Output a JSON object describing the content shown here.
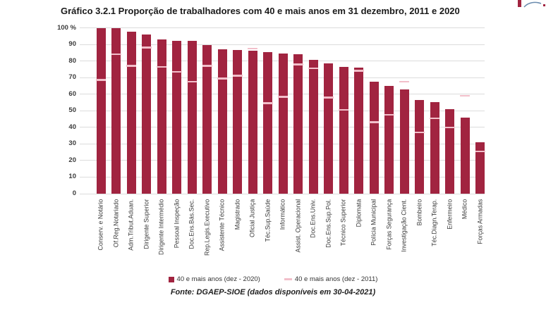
{
  "title": "Gráfico 3.2.1 Proporção de trabalhadores com 40 e mais anos em 31 dezembro, 2011 e 2020",
  "colors": {
    "bar_2020": "#A12440",
    "tick_2011": "#F2BFCA",
    "gridline": "#dcdcdc",
    "logo_red": "#A12440",
    "logo_blue": "#6a8bae"
  },
  "chart_data": {
    "type": "bar",
    "title": "Gráfico 3.2.1 Proporção de trabalhadores com 40 e mais anos em 31 dezembro, 2011 e 2020",
    "unit": "%",
    "ylim": [
      0,
      100
    ],
    "ytick_interval": 10,
    "ytick_top_label": "100 %",
    "grid": true,
    "legend_position": "bottom",
    "categories": [
      "Conserv. e Notário",
      "Of.Reg.Notariado",
      "Adm.Tribut.Aduan.",
      "Dirigente Superior",
      "Dirigente Intermédio",
      "Pessoal Inspeção",
      "Doc.Ens.Bás.Sec.",
      "Rep.Legis.Executivo",
      "Assistente Técnico",
      "Magistrado",
      "Oficial Justiça",
      "Téc.Sup.Saúde",
      "Informático",
      "Assist. Operacional",
      "Doc.Ens.Univ.",
      "Doc.Ens.Sup.Pol.",
      "Técnico Superior",
      "Diplomata",
      "Polícia Municipal",
      "Forças Segurança",
      "Investigação Cient.",
      "Bombeiro",
      "Téc.Diagn.Terap.",
      "Enfermeiro",
      "Médico",
      "Forças Armadas"
    ],
    "series": [
      {
        "name": "40 e mais anos  (dez - 2020)",
        "style": "bar",
        "values": [
          100,
          100,
          97.5,
          96,
          93,
          92,
          92,
          89.5,
          87,
          86.5,
          86,
          85.5,
          84.5,
          84,
          80.5,
          78.5,
          76.5,
          76,
          67.5,
          65,
          63,
          56.5,
          55,
          51,
          46,
          31
        ]
      },
      {
        "name": "40 e mais anos (dez - 2011)",
        "style": "tick",
        "values": [
          68.5,
          84,
          77,
          88,
          76.5,
          73.5,
          67.5,
          77,
          69.5,
          71,
          87.5,
          54.5,
          58.5,
          78,
          75.5,
          58,
          50.5,
          74,
          43,
          47.5,
          67.5,
          37,
          45.5,
          40,
          59,
          25.5
        ]
      }
    ]
  },
  "legend": {
    "item_2020": "40 e mais anos  (dez - 2020)",
    "item_2011": "40 e mais anos (dez - 2011)"
  },
  "footer": {
    "source_label": "Fonte:",
    "source_rest": " DGAEP-SIOE (dados disponíveis em 30-04-2021)"
  }
}
